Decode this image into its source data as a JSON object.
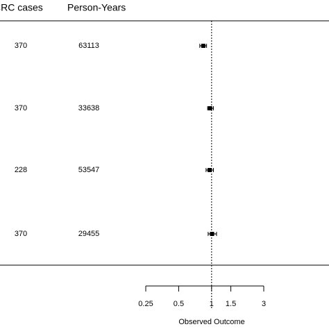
{
  "chart_data": {
    "type": "forest",
    "columns": [
      {
        "name": "CRC cases",
        "values": [
          370,
          370,
          228,
          370
        ]
      },
      {
        "name": "Person-Years",
        "values": [
          63113,
          33638,
          53547,
          29455
        ]
      }
    ],
    "values": [
      0.84,
      0.97,
      0.96,
      1.01
    ],
    "lower": [
      0.78,
      0.92,
      0.89,
      0.93
    ],
    "upper": [
      0.9,
      1.04,
      1.04,
      1.11
    ],
    "xlim": [
      0.25,
      3
    ],
    "xticks": [
      0.25,
      0.5,
      1,
      1.5,
      3
    ],
    "log_x": true,
    "reference": 1,
    "xlabel": "Observed Outcome",
    "color": "#000000"
  }
}
